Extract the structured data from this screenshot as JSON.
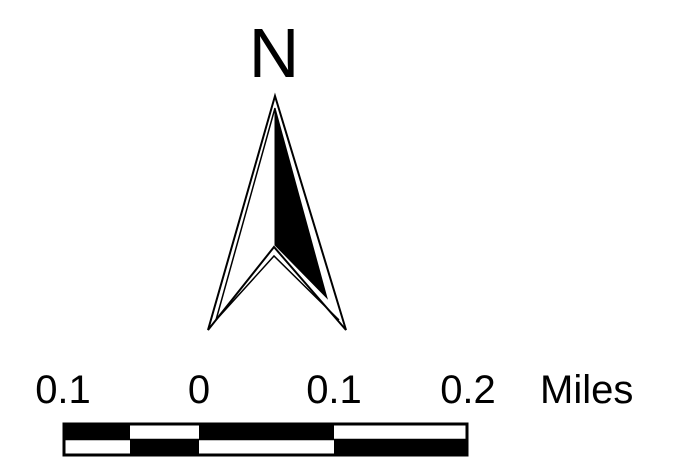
{
  "north_arrow": {
    "label": "N"
  },
  "scale_bar": {
    "tick_labels": [
      "0.1",
      "0",
      "0.1",
      "0.2"
    ],
    "unit_label": "Miles"
  },
  "colors": {
    "ink": "#000000",
    "background": "#ffffff"
  }
}
